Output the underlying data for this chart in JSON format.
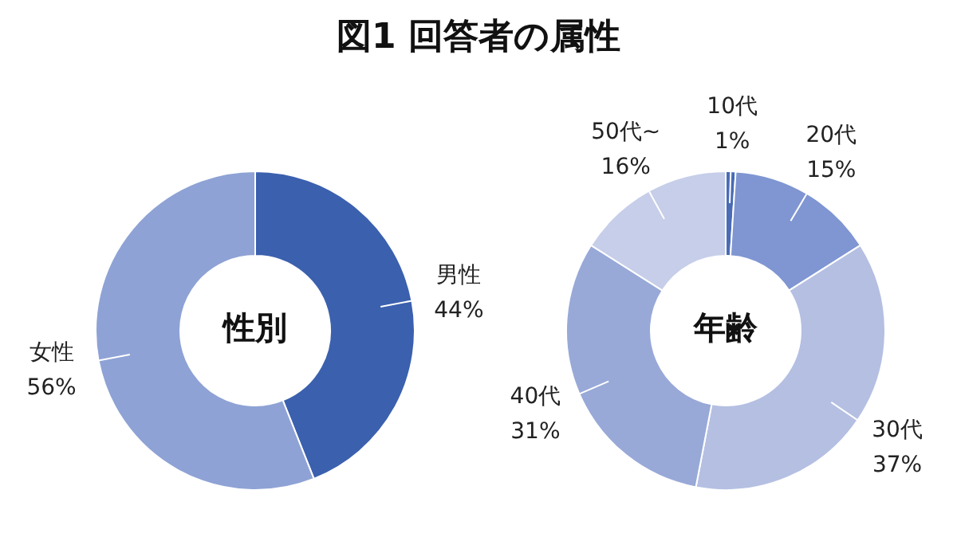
{
  "chart_data": [
    {
      "type": "donut",
      "title": "図1 回答者の属性",
      "annotations": [
        "性別"
      ],
      "categories": [
        "男性",
        "女性"
      ],
      "values": [
        44,
        56
      ],
      "colors": [
        "#3b60ae",
        "#8ea2d5"
      ],
      "value_labels": [
        "44%",
        "56%"
      ]
    },
    {
      "type": "donut",
      "annotations": [
        "年齢"
      ],
      "categories": [
        "10代",
        "20代",
        "30代",
        "40代",
        "50代~"
      ],
      "values": [
        1,
        15,
        37,
        31,
        16
      ],
      "colors": [
        "#4a6bb5",
        "#7f96d2",
        "#b4bfe2",
        "#98a9d8",
        "#c6cee9"
      ],
      "value_labels": [
        "1%",
        "15%",
        "37%",
        "31%",
        "16%"
      ]
    }
  ]
}
